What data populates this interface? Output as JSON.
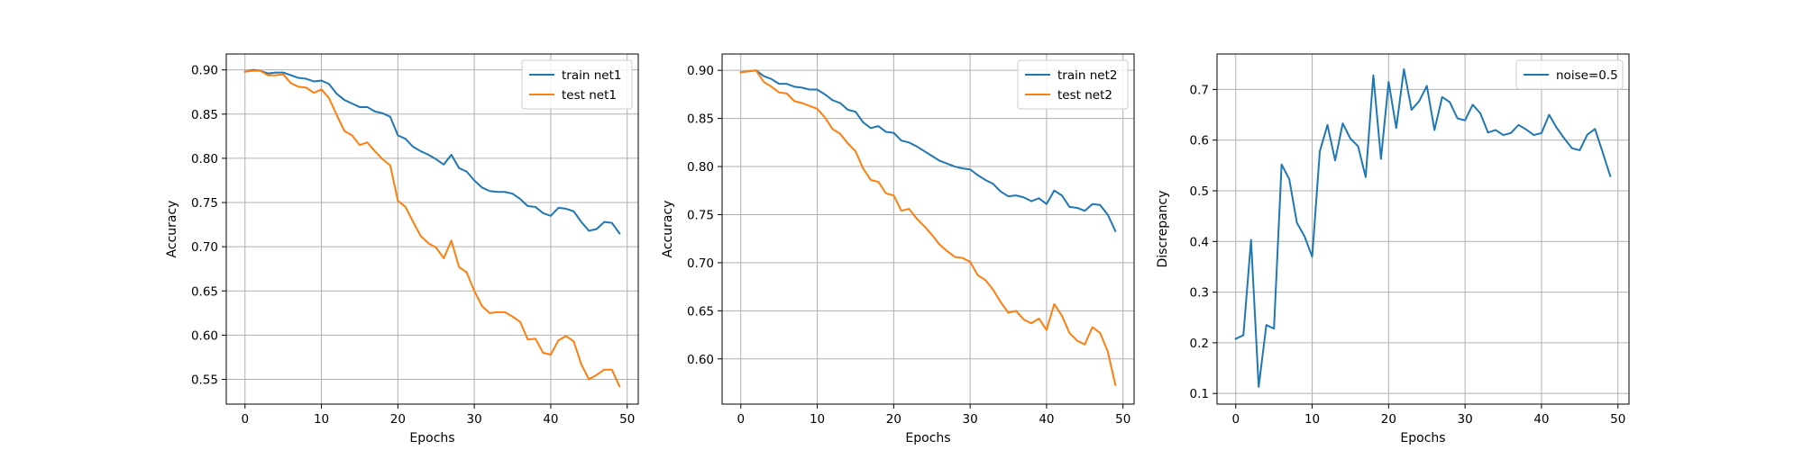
{
  "chart_data": [
    {
      "type": "line",
      "xlabel": "Epochs",
      "ylabel": "Accuracy",
      "xlim": [
        -2.45,
        51.45
      ],
      "ylim": [
        0.522,
        0.918
      ],
      "xticks": [
        0,
        10,
        20,
        30,
        40,
        50
      ],
      "yticks": [
        0.55,
        0.6,
        0.65,
        0.7,
        0.75,
        0.8,
        0.85,
        0.9
      ],
      "ytick_labels": [
        "0.55",
        "0.60",
        "0.65",
        "0.70",
        "0.75",
        "0.80",
        "0.85",
        "0.90"
      ],
      "grid": true,
      "legend": "upper right",
      "series": [
        {
          "name": "train net1",
          "color": "#1f77b4",
          "values": [
            0.898,
            0.9,
            0.899,
            0.896,
            0.897,
            0.897,
            0.894,
            0.891,
            0.89,
            0.887,
            0.888,
            0.884,
            0.873,
            0.866,
            0.862,
            0.858,
            0.858,
            0.853,
            0.851,
            0.847,
            0.826,
            0.822,
            0.813,
            0.808,
            0.804,
            0.799,
            0.793,
            0.804,
            0.789,
            0.785,
            0.775,
            0.767,
            0.763,
            0.762,
            0.762,
            0.76,
            0.754,
            0.746,
            0.745,
            0.738,
            0.735,
            0.744,
            0.743,
            0.74,
            0.728,
            0.718,
            0.72,
            0.728,
            0.727,
            0.715
          ]
        },
        {
          "name": "test net1",
          "color": "#ff7f0e",
          "values": [
            0.898,
            0.899,
            0.899,
            0.894,
            0.894,
            0.895,
            0.885,
            0.881,
            0.88,
            0.874,
            0.878,
            0.868,
            0.849,
            0.831,
            0.826,
            0.815,
            0.818,
            0.808,
            0.799,
            0.792,
            0.752,
            0.745,
            0.728,
            0.712,
            0.704,
            0.699,
            0.687,
            0.707,
            0.677,
            0.671,
            0.65,
            0.633,
            0.625,
            0.626,
            0.626,
            0.621,
            0.615,
            0.595,
            0.596,
            0.58,
            0.578,
            0.594,
            0.599,
            0.593,
            0.567,
            0.55,
            0.555,
            0.561,
            0.561,
            0.542
          ]
        }
      ]
    },
    {
      "type": "line",
      "xlabel": "Epochs",
      "ylabel": "Accuracy",
      "xlim": [
        -2.45,
        51.45
      ],
      "ylim": [
        0.553,
        0.917
      ],
      "xticks": [
        0,
        10,
        20,
        30,
        40,
        50
      ],
      "yticks": [
        0.6,
        0.65,
        0.7,
        0.75,
        0.8,
        0.85,
        0.9
      ],
      "ytick_labels": [
        "0.60",
        "0.65",
        "0.70",
        "0.75",
        "0.80",
        "0.85",
        "0.90"
      ],
      "grid": true,
      "legend": "upper right",
      "series": [
        {
          "name": "train net2",
          "color": "#1f77b4",
          "values": [
            0.898,
            0.899,
            0.9,
            0.894,
            0.891,
            0.886,
            0.886,
            0.883,
            0.882,
            0.88,
            0.88,
            0.875,
            0.869,
            0.866,
            0.859,
            0.857,
            0.846,
            0.84,
            0.842,
            0.836,
            0.835,
            0.827,
            0.825,
            0.821,
            0.816,
            0.811,
            0.806,
            0.803,
            0.8,
            0.798,
            0.797,
            0.791,
            0.786,
            0.782,
            0.774,
            0.769,
            0.77,
            0.768,
            0.764,
            0.767,
            0.761,
            0.775,
            0.77,
            0.758,
            0.757,
            0.754,
            0.761,
            0.76,
            0.75,
            0.733
          ]
        },
        {
          "name": "test net2",
          "color": "#ff7f0e",
          "values": [
            0.898,
            0.899,
            0.9,
            0.888,
            0.883,
            0.877,
            0.876,
            0.868,
            0.866,
            0.863,
            0.86,
            0.851,
            0.839,
            0.834,
            0.824,
            0.816,
            0.798,
            0.786,
            0.784,
            0.772,
            0.77,
            0.754,
            0.756,
            0.746,
            0.738,
            0.729,
            0.719,
            0.712,
            0.706,
            0.705,
            0.701,
            0.687,
            0.682,
            0.672,
            0.659,
            0.648,
            0.65,
            0.641,
            0.637,
            0.642,
            0.63,
            0.657,
            0.645,
            0.627,
            0.619,
            0.615,
            0.633,
            0.627,
            0.608,
            0.573
          ]
        }
      ]
    },
    {
      "type": "line",
      "xlabel": "Epochs",
      "ylabel": "Discrepancy",
      "xlim": [
        -2.45,
        51.45
      ],
      "ylim": [
        0.079,
        0.77
      ],
      "xticks": [
        0,
        10,
        20,
        30,
        40,
        50
      ],
      "yticks": [
        0.1,
        0.2,
        0.3,
        0.4,
        0.5,
        0.6,
        0.7
      ],
      "ytick_labels": [
        "0.1",
        "0.2",
        "0.3",
        "0.4",
        "0.5",
        "0.6",
        "0.7"
      ],
      "grid": true,
      "legend": "upper right",
      "series": [
        {
          "name": "noise=0.5",
          "color": "#1f77b4",
          "values": [
            0.208,
            0.215,
            0.403,
            0.113,
            0.235,
            0.228,
            0.552,
            0.523,
            0.437,
            0.41,
            0.37,
            0.578,
            0.63,
            0.56,
            0.633,
            0.603,
            0.588,
            0.527,
            0.728,
            0.563,
            0.715,
            0.624,
            0.74,
            0.66,
            0.677,
            0.707,
            0.62,
            0.685,
            0.675,
            0.643,
            0.639,
            0.67,
            0.653,
            0.615,
            0.62,
            0.61,
            0.614,
            0.63,
            0.621,
            0.61,
            0.614,
            0.65,
            0.624,
            0.603,
            0.584,
            0.58,
            0.611,
            0.622,
            0.576,
            0.529
          ]
        }
      ]
    }
  ]
}
